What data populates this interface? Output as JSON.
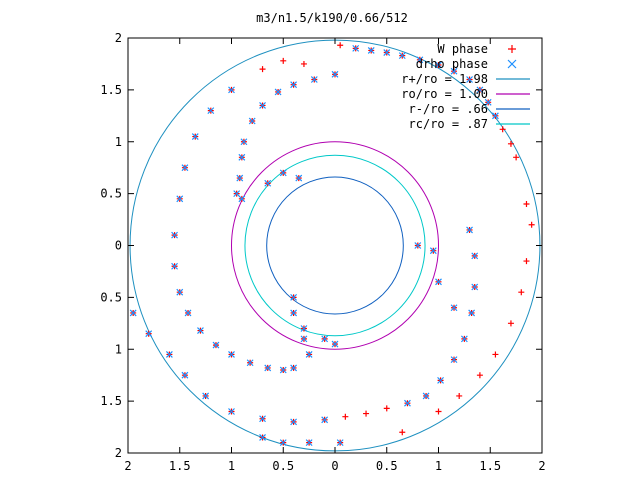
{
  "chart_data": {
    "type": "scatter",
    "title": "m3/n1.5/k190/0.66/512",
    "xlim": [
      -2,
      2
    ],
    "ylim": [
      -2,
      2
    ],
    "x_tick_labels": [
      "2",
      "1.5",
      "1",
      "0.5",
      "0",
      "0.5",
      "1",
      "1.5",
      "2"
    ],
    "y_tick_labels": [
      "2",
      "1.5",
      "1",
      "0.5",
      "0",
      "0.5",
      "1",
      "1.5",
      "2"
    ],
    "tick_values": [
      -2,
      -1.5,
      -1,
      -0.5,
      0,
      0.5,
      1,
      1.5,
      2
    ],
    "grid": false,
    "legend_position": "top-right",
    "legend": [
      {
        "label": "W phase",
        "marker": "plus",
        "color": "#ff0000"
      },
      {
        "label": "drho phase",
        "marker": "cross",
        "color": "#1e90ff"
      },
      {
        "label": "r+/ro = 1.98",
        "marker": "line",
        "color": "#1e90c0"
      },
      {
        "label": "ro/ro = 1.00",
        "marker": "line",
        "color": "#b000b0"
      },
      {
        "label": "r-/ro = .66",
        "marker": "line",
        "color": "#1060c0"
      },
      {
        "label": "rc/ro = .87",
        "marker": "line",
        "color": "#00c8c8"
      }
    ],
    "circles": [
      {
        "name": "r+/ro = 1.98",
        "r": 1.98,
        "color": "#1e90c0"
      },
      {
        "name": "ro/ro = 1.00",
        "r": 1.0,
        "color": "#b000b0"
      },
      {
        "name": "r-/ro = .66",
        "r": 0.66,
        "color": "#1060c0"
      },
      {
        "name": "rc/ro = .87",
        "r": 0.87,
        "color": "#00c8c8"
      }
    ],
    "series": [
      {
        "name": "W phase",
        "marker": "plus",
        "color": "#ff0000",
        "points": [
          [
            0.05,
            1.93
          ],
          [
            0.2,
            1.9
          ],
          [
            0.35,
            1.88
          ],
          [
            0.5,
            1.86
          ],
          [
            0.65,
            1.83
          ],
          [
            0.82,
            1.79
          ],
          [
            1.0,
            1.74
          ],
          [
            1.15,
            1.68
          ],
          [
            1.3,
            1.6
          ],
          [
            1.4,
            1.5
          ],
          [
            1.48,
            1.38
          ],
          [
            1.55,
            1.25
          ],
          [
            1.62,
            1.12
          ],
          [
            1.7,
            0.98
          ],
          [
            1.75,
            0.85
          ],
          [
            0.0,
            1.65
          ],
          [
            -0.2,
            1.6
          ],
          [
            -0.4,
            1.55
          ],
          [
            -0.55,
            1.48
          ],
          [
            -0.7,
            1.35
          ],
          [
            -0.8,
            1.2
          ],
          [
            -0.88,
            1.0
          ],
          [
            -0.9,
            0.85
          ],
          [
            -0.92,
            0.65
          ],
          [
            -0.95,
            0.5
          ],
          [
            -0.3,
            1.75
          ],
          [
            -0.5,
            1.78
          ],
          [
            -0.7,
            1.7
          ],
          [
            -1.0,
            1.5
          ],
          [
            -1.2,
            1.3
          ],
          [
            -1.35,
            1.05
          ],
          [
            -1.45,
            0.75
          ],
          [
            -1.5,
            0.45
          ],
          [
            -1.55,
            0.1
          ],
          [
            -1.55,
            -0.2
          ],
          [
            -1.5,
            -0.45
          ],
          [
            -1.42,
            -0.65
          ],
          [
            -1.3,
            -0.82
          ],
          [
            -1.15,
            -0.96
          ],
          [
            -1.0,
            -1.05
          ],
          [
            -0.82,
            -1.13
          ],
          [
            -0.65,
            -1.18
          ],
          [
            -0.5,
            -1.2
          ],
          [
            -1.95,
            -0.65
          ],
          [
            -1.8,
            -0.85
          ],
          [
            -1.6,
            -1.05
          ],
          [
            -1.45,
            -1.25
          ],
          [
            -1.25,
            -1.45
          ],
          [
            -1.0,
            -1.6
          ],
          [
            -0.7,
            -1.67
          ],
          [
            -0.4,
            -1.7
          ],
          [
            -0.1,
            -1.68
          ],
          [
            0.1,
            -1.65
          ],
          [
            0.3,
            -1.62
          ],
          [
            0.5,
            -1.57
          ],
          [
            0.7,
            -1.52
          ],
          [
            0.88,
            -1.45
          ],
          [
            1.02,
            -1.3
          ],
          [
            1.15,
            -1.1
          ],
          [
            1.25,
            -0.9
          ],
          [
            1.32,
            -0.65
          ],
          [
            1.35,
            -0.4
          ],
          [
            1.35,
            -0.1
          ],
          [
            1.3,
            0.15
          ],
          [
            0.05,
            -1.9
          ],
          [
            -0.25,
            -1.9
          ],
          [
            -0.5,
            -1.9
          ],
          [
            -0.7,
            -1.85
          ],
          [
            0.65,
            -1.8
          ],
          [
            1.0,
            -1.6
          ],
          [
            1.2,
            -1.45
          ],
          [
            1.4,
            -1.25
          ],
          [
            1.55,
            -1.05
          ],
          [
            1.7,
            -0.75
          ],
          [
            1.8,
            -0.45
          ],
          [
            1.85,
            -0.15
          ],
          [
            1.9,
            0.2
          ],
          [
            1.85,
            0.4
          ],
          [
            0.0,
            -0.95
          ],
          [
            -0.1,
            -0.9
          ],
          [
            -0.3,
            -0.8
          ],
          [
            -0.4,
            -0.65
          ],
          [
            -0.4,
            -0.5
          ],
          [
            -0.3,
            -0.9
          ],
          [
            -0.25,
            -1.05
          ],
          [
            -0.4,
            -1.18
          ],
          [
            -0.35,
            0.65
          ],
          [
            -0.5,
            0.7
          ],
          [
            -0.65,
            0.6
          ],
          [
            -0.9,
            0.45
          ],
          [
            0.8,
            0.0
          ],
          [
            0.95,
            -0.05
          ],
          [
            1.0,
            -0.35
          ],
          [
            1.15,
            -0.6
          ]
        ]
      },
      {
        "name": "drho phase",
        "marker": "cross",
        "color": "#1e90ff",
        "points": [
          [
            0.2,
            1.9
          ],
          [
            0.35,
            1.88
          ],
          [
            0.5,
            1.86
          ],
          [
            0.65,
            1.83
          ],
          [
            0.82,
            1.79
          ],
          [
            1.0,
            1.74
          ],
          [
            1.15,
            1.68
          ],
          [
            1.3,
            1.6
          ],
          [
            1.4,
            1.5
          ],
          [
            1.48,
            1.38
          ],
          [
            1.55,
            1.25
          ],
          [
            0.0,
            1.65
          ],
          [
            -0.2,
            1.6
          ],
          [
            -0.4,
            1.55
          ],
          [
            -0.55,
            1.48
          ],
          [
            -0.7,
            1.35
          ],
          [
            -0.8,
            1.2
          ],
          [
            -0.88,
            1.0
          ],
          [
            -0.9,
            0.85
          ],
          [
            -0.92,
            0.65
          ],
          [
            -0.95,
            0.5
          ],
          [
            -1.0,
            1.5
          ],
          [
            -1.2,
            1.3
          ],
          [
            -1.35,
            1.05
          ],
          [
            -1.45,
            0.75
          ],
          [
            -1.5,
            0.45
          ],
          [
            -1.55,
            0.1
          ],
          [
            -1.55,
            -0.2
          ],
          [
            -1.5,
            -0.45
          ],
          [
            -1.42,
            -0.65
          ],
          [
            -1.3,
            -0.82
          ],
          [
            -1.15,
            -0.96
          ],
          [
            -1.0,
            -1.05
          ],
          [
            -0.82,
            -1.13
          ],
          [
            -0.65,
            -1.18
          ],
          [
            -0.5,
            -1.2
          ],
          [
            -1.95,
            -0.65
          ],
          [
            -1.8,
            -0.85
          ],
          [
            -1.6,
            -1.05
          ],
          [
            -1.45,
            -1.25
          ],
          [
            -1.25,
            -1.45
          ],
          [
            -1.0,
            -1.6
          ],
          [
            -0.7,
            -1.67
          ],
          [
            -0.4,
            -1.7
          ],
          [
            -0.1,
            -1.68
          ],
          [
            0.7,
            -1.52
          ],
          [
            0.88,
            -1.45
          ],
          [
            1.02,
            -1.3
          ],
          [
            1.15,
            -1.1
          ],
          [
            1.25,
            -0.9
          ],
          [
            1.32,
            -0.65
          ],
          [
            1.35,
            -0.4
          ],
          [
            1.35,
            -0.1
          ],
          [
            1.3,
            0.15
          ],
          [
            0.05,
            -1.9
          ],
          [
            -0.25,
            -1.9
          ],
          [
            -0.5,
            -1.9
          ],
          [
            -0.7,
            -1.85
          ],
          [
            0.0,
            -0.95
          ],
          [
            -0.1,
            -0.9
          ],
          [
            -0.3,
            -0.8
          ],
          [
            -0.4,
            -0.65
          ],
          [
            -0.4,
            -0.5
          ],
          [
            -0.3,
            -0.9
          ],
          [
            -0.25,
            -1.05
          ],
          [
            -0.4,
            -1.18
          ],
          [
            -0.35,
            0.65
          ],
          [
            -0.5,
            0.7
          ],
          [
            -0.65,
            0.6
          ],
          [
            -0.9,
            0.45
          ],
          [
            0.8,
            0.0
          ],
          [
            0.95,
            -0.05
          ],
          [
            1.0,
            -0.35
          ],
          [
            1.15,
            -0.6
          ]
        ]
      }
    ]
  }
}
